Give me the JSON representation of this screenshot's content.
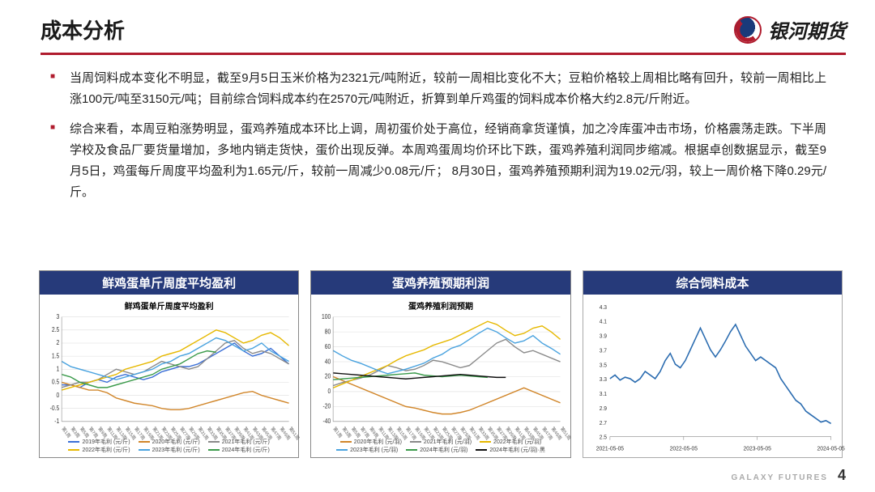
{
  "header": {
    "title": "成本分析",
    "logo_text": "银河期货"
  },
  "bullets": [
    "当周饲料成本变化不明显，截至9月5日玉米价格为2321元/吨附近，较前一周相比变化不大；豆粕价格较上周相比略有回升，较前一周相比上涨100元/吨至3150元/吨；目前综合饲料成本约在2570元/吨附近，折算到单斤鸡蛋的饲料成本价格大约2.8元/斤附近。",
    "综合来看，本周豆粕涨势明显，蛋鸡养殖成本环比上调，周初蛋价处于高位，经销商拿货谨慎，加之冷库蛋冲击市场，价格震荡走跌。下半周学校及食品厂要货量增加，多地内销走货快，蛋价出现反弹。本周鸡蛋周均价环比下跌，蛋鸡养殖利润同步缩减。根据卓创数据显示，截至9月5日，鸡蛋每斤周度平均盈利为1.65元/斤，较前一周减少0.08元/斤； 8月30日，蛋鸡养殖预期利润为19.02元/羽，较上一周价格下降0.29元/斤。"
  ],
  "footer": {
    "brand": "GALAXY FUTURES",
    "page": "4"
  },
  "chart1": {
    "type": "line",
    "title": "鲜鸡蛋单斤周度平均盈利",
    "inner_title": "鲜鸡蛋单斤周度平均盈利",
    "ylim": [
      -1,
      3
    ],
    "ytick_step": 0.5,
    "background_color": "#ffffff",
    "grid_color": "#e2e2e2",
    "label_fontsize": 7,
    "title_fontsize": 15,
    "x_labels": [
      "第1周",
      "第3周",
      "第5周",
      "第7周",
      "第9周",
      "第11周",
      "第13周",
      "第15周",
      "第17周",
      "第19周",
      "第21周",
      "第23周",
      "第25周",
      "第27周",
      "第29周",
      "第31周",
      "第33周",
      "第35周",
      "第37周",
      "第39周",
      "第41周",
      "第43周",
      "第45周",
      "第47周",
      "第49周",
      "第51周"
    ],
    "series": [
      {
        "name": "2019年毛利 (元/斤)",
        "color": "#3b6fd6",
        "values": [
          0.4,
          0.4,
          0.3,
          0.5,
          0.6,
          0.5,
          0.7,
          0.8,
          0.7,
          0.6,
          0.7,
          0.9,
          1.0,
          1.1,
          1.1,
          1.2,
          1.4,
          1.6,
          1.8,
          2.0,
          1.7,
          1.5,
          1.6,
          1.8,
          1.5,
          1.2
        ]
      },
      {
        "name": "2020年毛利 (元/斤)",
        "color": "#d1862a",
        "values": [
          0.5,
          0.4,
          0.3,
          0.2,
          0.2,
          0.1,
          -0.1,
          -0.2,
          -0.3,
          -0.35,
          -0.4,
          -0.5,
          -0.55,
          -0.55,
          -0.5,
          -0.4,
          -0.3,
          -0.2,
          -0.1,
          0.0,
          0.1,
          0.15,
          0.0,
          -0.1,
          -0.2,
          -0.3
        ]
      },
      {
        "name": "2021年毛利 (元/斤)",
        "color": "#8a8a8a",
        "values": [
          0.3,
          0.4,
          0.5,
          0.5,
          0.6,
          0.8,
          1.0,
          0.9,
          0.8,
          0.9,
          1.1,
          1.3,
          1.2,
          1.1,
          1.0,
          1.1,
          1.4,
          1.7,
          2.0,
          2.1,
          1.8,
          1.6,
          1.7,
          1.6,
          1.4,
          1.2
        ]
      },
      {
        "name": "2022年毛利 (元/斤)",
        "color": "#e6b800",
        "values": [
          0.2,
          0.3,
          0.4,
          0.5,
          0.6,
          0.7,
          0.8,
          1.0,
          1.1,
          1.2,
          1.3,
          1.5,
          1.6,
          1.7,
          1.9,
          2.1,
          2.3,
          2.5,
          2.4,
          2.2,
          2.0,
          2.1,
          2.3,
          2.4,
          2.2,
          1.9
        ]
      },
      {
        "name": "2023年毛利 (元/斤)",
        "color": "#4aa3df",
        "values": [
          1.3,
          1.1,
          1.0,
          0.9,
          0.8,
          0.7,
          0.6,
          0.7,
          0.8,
          0.9,
          1.0,
          1.2,
          1.3,
          1.5,
          1.6,
          1.8,
          2.0,
          2.2,
          2.1,
          1.9,
          1.7,
          1.8,
          2.0,
          1.7,
          1.5,
          1.3
        ]
      },
      {
        "name": "2024年毛利 (元/斤)",
        "color": "#3a9a4a",
        "values": [
          0.8,
          0.7,
          0.5,
          0.4,
          0.3,
          0.3,
          0.4,
          0.5,
          0.6,
          0.7,
          0.8,
          1.0,
          1.1,
          1.2,
          1.4,
          1.6,
          1.7,
          1.65
        ]
      }
    ]
  },
  "chart2": {
    "type": "line",
    "title": "蛋鸡养殖预期利润",
    "inner_title": "蛋鸡养殖利润预期",
    "ylim": [
      -40,
      100
    ],
    "ytick_step": 20,
    "background_color": "#ffffff",
    "grid_color": "#e2e2e2",
    "label_fontsize": 7,
    "title_fontsize": 15,
    "x_labels": [
      "第1周",
      "第3周",
      "第5周",
      "第7周",
      "第9周",
      "第11周",
      "第13周",
      "第15周",
      "第17周",
      "第19周",
      "第21周",
      "第23周",
      "第25周",
      "第27周",
      "第29周",
      "第31周",
      "第33周",
      "第35周",
      "第37周",
      "第39周",
      "第41周",
      "第43周",
      "第45周",
      "第47周",
      "第49周",
      "第51周"
    ],
    "series": [
      {
        "name": "2020年毛利 (元/羽)",
        "color": "#d1862a",
        "values": [
          20,
          15,
          10,
          5,
          0,
          -5,
          -10,
          -15,
          -20,
          -22,
          -25,
          -28,
          -30,
          -30,
          -28,
          -25,
          -20,
          -15,
          -10,
          -5,
          0,
          5,
          0,
          -5,
          -10,
          -15
        ]
      },
      {
        "name": "2021年毛利 (元/羽)",
        "color": "#8a8a8a",
        "values": [
          8,
          12,
          15,
          18,
          22,
          28,
          35,
          32,
          28,
          30,
          35,
          42,
          40,
          36,
          32,
          35,
          45,
          55,
          65,
          70,
          60,
          52,
          55,
          50,
          45,
          40
        ]
      },
      {
        "name": "2022年毛利 (元/羽)",
        "color": "#e6b800",
        "values": [
          5,
          10,
          15,
          20,
          25,
          30,
          35,
          42,
          48,
          52,
          56,
          62,
          66,
          70,
          76,
          82,
          88,
          94,
          90,
          82,
          75,
          78,
          85,
          88,
          80,
          70
        ]
      },
      {
        "name": "2023年毛利 (元/羽)",
        "color": "#4aa3df",
        "values": [
          55,
          48,
          42,
          38,
          33,
          28,
          24,
          27,
          30,
          34,
          38,
          45,
          50,
          58,
          62,
          70,
          78,
          85,
          80,
          72,
          65,
          68,
          75,
          65,
          58,
          50
        ]
      },
      {
        "name": "2024年毛利 (元/羽)",
        "color": "#3a9a4a",
        "values": [
          16,
          17,
          18,
          19,
          20,
          21,
          22,
          23,
          24,
          25,
          22,
          21,
          20,
          21,
          22,
          21,
          20,
          19
        ]
      },
      {
        "name": "2024年毛利 (元/羽)·黑",
        "color": "#111111",
        "values": [
          25,
          24,
          23,
          22,
          21,
          20,
          19,
          18,
          17,
          18,
          19,
          20,
          21,
          22,
          23,
          22,
          21,
          20,
          19,
          19.02
        ]
      }
    ]
  },
  "chart3": {
    "type": "line",
    "title": "综合饲料成本",
    "ylim": [
      2.5,
      4.3
    ],
    "ytick_step": 0.2,
    "background_color": "#ffffff",
    "grid_color": "#e8e8e8",
    "label_fontsize": 8,
    "title_fontsize": 15,
    "line_color": "#2b6cb0",
    "x_labels": [
      "2021-05-05",
      "2022-05-05",
      "2023-05-05",
      "2024-05-05"
    ],
    "values": [
      3.3,
      3.35,
      3.28,
      3.32,
      3.3,
      3.25,
      3.3,
      3.4,
      3.35,
      3.3,
      3.4,
      3.55,
      3.65,
      3.5,
      3.45,
      3.55,
      3.7,
      3.85,
      4.0,
      3.85,
      3.7,
      3.6,
      3.7,
      3.82,
      3.95,
      4.05,
      3.9,
      3.75,
      3.65,
      3.55,
      3.6,
      3.55,
      3.5,
      3.45,
      3.3,
      3.2,
      3.1,
      3.0,
      2.95,
      2.85,
      2.8,
      2.75,
      2.7,
      2.72,
      2.68
    ]
  }
}
